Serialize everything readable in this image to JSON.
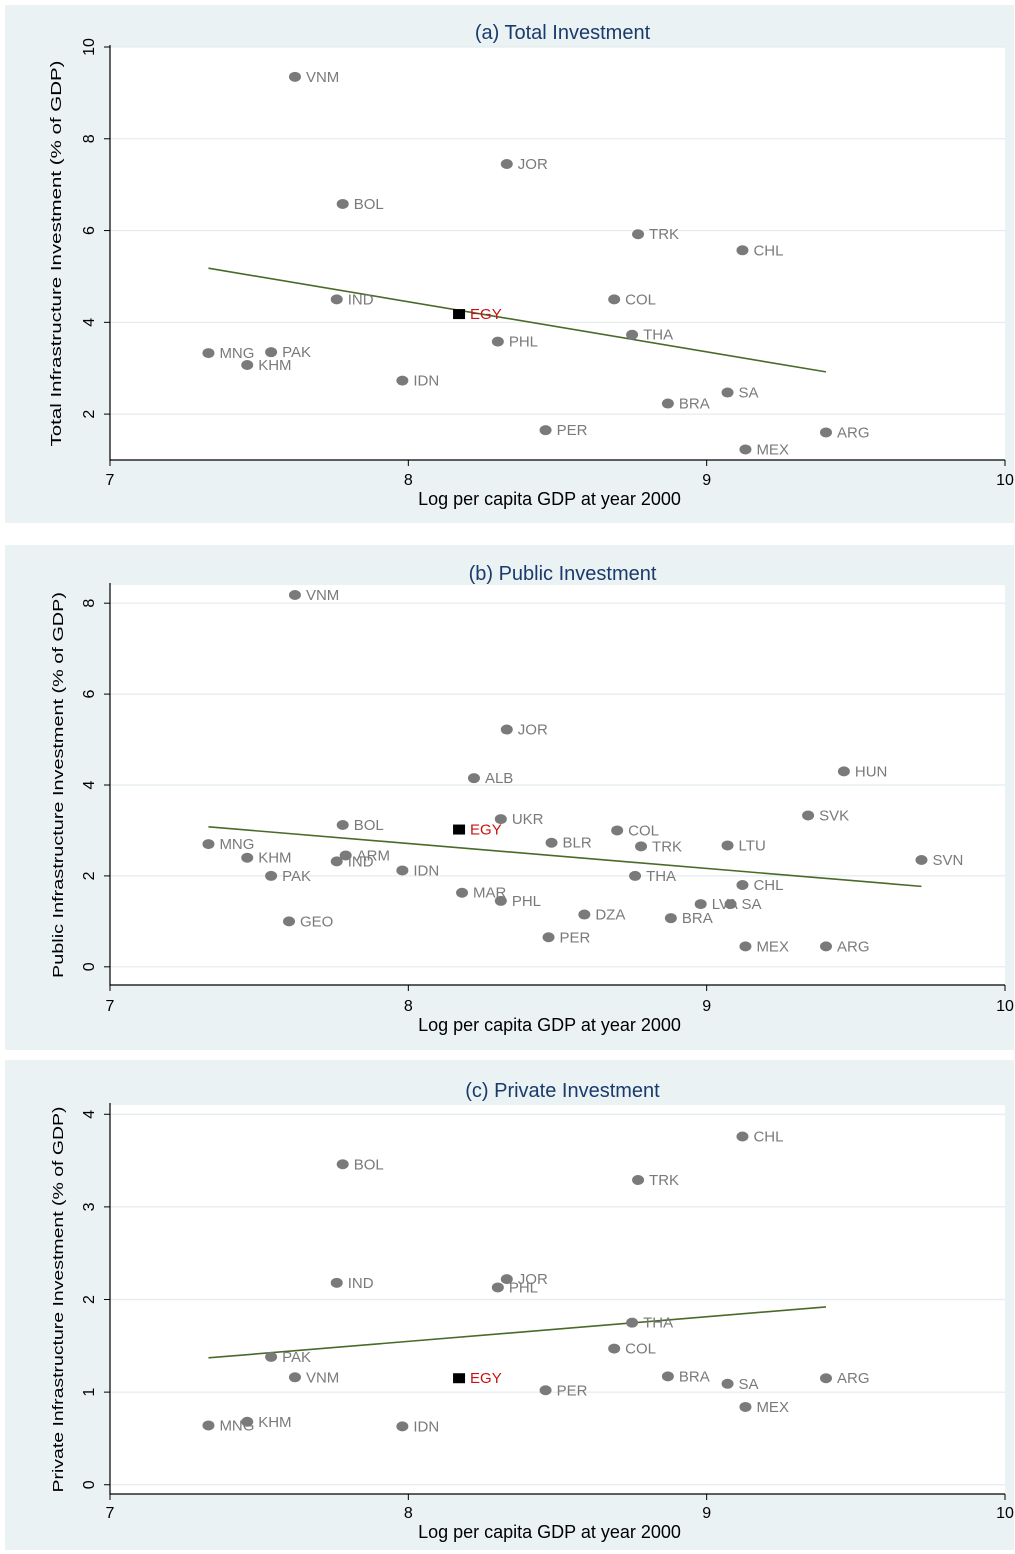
{
  "colors": {
    "panel_bg": "#eaf2f3",
    "plot_bg": "#ffffff",
    "marker": "#7a7a7a",
    "highlight_marker": "#000000",
    "highlight_label": "#cc1111",
    "fit_line": "#4a6a2a",
    "title": "#1a3a6b"
  },
  "chart_data": [
    {
      "type": "scatter",
      "title": "(a) Total Investment",
      "xlabel": "Log per capita GDP at year 2000",
      "ylabel": "Total Infrastructure Investment (% of GDP)",
      "xlim": [
        7,
        10
      ],
      "ylim": [
        1,
        10
      ],
      "xticks": [
        "7",
        "8",
        "9",
        "10"
      ],
      "yticks": [
        "2",
        "4",
        "6",
        "8",
        "10"
      ],
      "grid": true,
      "points": [
        {
          "label": "VNM",
          "x": 7.62,
          "y": 9.35
        },
        {
          "label": "JOR",
          "x": 8.33,
          "y": 7.45
        },
        {
          "label": "BOL",
          "x": 7.78,
          "y": 6.58
        },
        {
          "label": "TRK",
          "x": 8.77,
          "y": 5.92
        },
        {
          "label": "CHL",
          "x": 9.12,
          "y": 5.57
        },
        {
          "label": "IND",
          "x": 7.76,
          "y": 4.5
        },
        {
          "label": "COL",
          "x": 8.69,
          "y": 4.5
        },
        {
          "label": "EGY",
          "x": 8.17,
          "y": 4.18,
          "highlight": true
        },
        {
          "label": "THA",
          "x": 8.75,
          "y": 3.73
        },
        {
          "label": "PHL",
          "x": 8.3,
          "y": 3.58
        },
        {
          "label": "MNG",
          "x": 7.33,
          "y": 3.33
        },
        {
          "label": "PAK",
          "x": 7.54,
          "y": 3.35
        },
        {
          "label": "KHM",
          "x": 7.46,
          "y": 3.07
        },
        {
          "label": "IDN",
          "x": 7.98,
          "y": 2.73
        },
        {
          "label": "SA",
          "x": 9.07,
          "y": 2.47
        },
        {
          "label": "BRA",
          "x": 8.87,
          "y": 2.23
        },
        {
          "label": "PER",
          "x": 8.46,
          "y": 1.65
        },
        {
          "label": "ARG",
          "x": 9.4,
          "y": 1.6
        },
        {
          "label": "MEX",
          "x": 9.13,
          "y": 1.23
        }
      ],
      "fit_line": {
        "x": [
          7.33,
          9.4
        ],
        "y": [
          5.18,
          2.92
        ]
      }
    },
    {
      "type": "scatter",
      "title": "(b) Public Investment",
      "xlabel": "Log per capita GDP at year 2000",
      "ylabel": "Public Infrastructure Investment (% of GDP)",
      "xlim": [
        7,
        10
      ],
      "ylim": [
        -0.4,
        8.4
      ],
      "xticks": [
        "7",
        "8",
        "9",
        "10"
      ],
      "yticks": [
        "0",
        "2",
        "4",
        "6",
        "8"
      ],
      "grid": true,
      "points": [
        {
          "label": "VNM",
          "x": 7.62,
          "y": 8.18
        },
        {
          "label": "JOR",
          "x": 8.33,
          "y": 5.22
        },
        {
          "label": "HUN",
          "x": 9.46,
          "y": 4.3
        },
        {
          "label": "ALB",
          "x": 8.22,
          "y": 4.15
        },
        {
          "label": "SVK",
          "x": 9.34,
          "y": 3.33
        },
        {
          "label": "UKR",
          "x": 8.31,
          "y": 3.25
        },
        {
          "label": "BOL",
          "x": 7.78,
          "y": 3.12
        },
        {
          "label": "EGY",
          "x": 8.17,
          "y": 3.02,
          "highlight": true
        },
        {
          "label": "COL",
          "x": 8.7,
          "y": 3.0
        },
        {
          "label": "BLR",
          "x": 8.48,
          "y": 2.73
        },
        {
          "label": "MNG",
          "x": 7.33,
          "y": 2.7
        },
        {
          "label": "TRK",
          "x": 8.78,
          "y": 2.65
        },
        {
          "label": "LTU",
          "x": 9.07,
          "y": 2.67
        },
        {
          "label": "KHM",
          "x": 7.46,
          "y": 2.4
        },
        {
          "label": "ARM",
          "x": 7.79,
          "y": 2.45
        },
        {
          "label": "IND",
          "x": 7.76,
          "y": 2.32
        },
        {
          "label": "SVN",
          "x": 9.72,
          "y": 2.35
        },
        {
          "label": "IDN",
          "x": 7.98,
          "y": 2.12
        },
        {
          "label": "PAK",
          "x": 7.54,
          "y": 2.0
        },
        {
          "label": "THA",
          "x": 8.76,
          "y": 2.0
        },
        {
          "label": "CHL",
          "x": 9.12,
          "y": 1.8
        },
        {
          "label": "MAR",
          "x": 8.18,
          "y": 1.63
        },
        {
          "label": "PHL",
          "x": 8.31,
          "y": 1.45
        },
        {
          "label": "LVA",
          "x": 8.98,
          "y": 1.38
        },
        {
          "label": "SA",
          "x": 9.08,
          "y": 1.38
        },
        {
          "label": "DZA",
          "x": 8.59,
          "y": 1.15
        },
        {
          "label": "BRA",
          "x": 8.88,
          "y": 1.07
        },
        {
          "label": "GEO",
          "x": 7.6,
          "y": 1.0
        },
        {
          "label": "PER",
          "x": 8.47,
          "y": 0.65
        },
        {
          "label": "MEX",
          "x": 9.13,
          "y": 0.45
        },
        {
          "label": "ARG",
          "x": 9.4,
          "y": 0.45
        }
      ],
      "fit_line": {
        "x": [
          7.33,
          9.72
        ],
        "y": [
          3.08,
          1.77
        ]
      }
    },
    {
      "type": "scatter",
      "title": "(c) Private Investment",
      "xlabel": "Log per capita GDP at year 2000",
      "ylabel": "Private Infrastructure Investment (% of GDP)",
      "xlim": [
        7,
        10
      ],
      "ylim": [
        -0.1,
        4.1
      ],
      "xticks": [
        "7",
        "8",
        "9",
        "10"
      ],
      "yticks": [
        "0",
        "1",
        "2",
        "3",
        "4"
      ],
      "grid": true,
      "points": [
        {
          "label": "CHL",
          "x": 9.12,
          "y": 3.76
        },
        {
          "label": "BOL",
          "x": 7.78,
          "y": 3.46
        },
        {
          "label": "TRK",
          "x": 8.77,
          "y": 3.29
        },
        {
          "label": "IND",
          "x": 7.76,
          "y": 2.18
        },
        {
          "label": "JOR",
          "x": 8.33,
          "y": 2.22
        },
        {
          "label": "PHL",
          "x": 8.3,
          "y": 2.13
        },
        {
          "label": "THA",
          "x": 8.75,
          "y": 1.75
        },
        {
          "label": "COL",
          "x": 8.69,
          "y": 1.47
        },
        {
          "label": "PAK",
          "x": 7.54,
          "y": 1.38
        },
        {
          "label": "VNM",
          "x": 7.62,
          "y": 1.16
        },
        {
          "label": "BRA",
          "x": 8.87,
          "y": 1.17
        },
        {
          "label": "EGY",
          "x": 8.17,
          "y": 1.15,
          "highlight": true
        },
        {
          "label": "ARG",
          "x": 9.4,
          "y": 1.15
        },
        {
          "label": "SA",
          "x": 9.07,
          "y": 1.09
        },
        {
          "label": "PER",
          "x": 8.46,
          "y": 1.02
        },
        {
          "label": "MEX",
          "x": 9.13,
          "y": 0.84
        },
        {
          "label": "KHM",
          "x": 7.46,
          "y": 0.68
        },
        {
          "label": "MNG",
          "x": 7.33,
          "y": 0.64
        },
        {
          "label": "IDN",
          "x": 7.98,
          "y": 0.63
        }
      ],
      "fit_line": {
        "x": [
          7.33,
          9.4
        ],
        "y": [
          1.37,
          1.92
        ]
      }
    }
  ]
}
